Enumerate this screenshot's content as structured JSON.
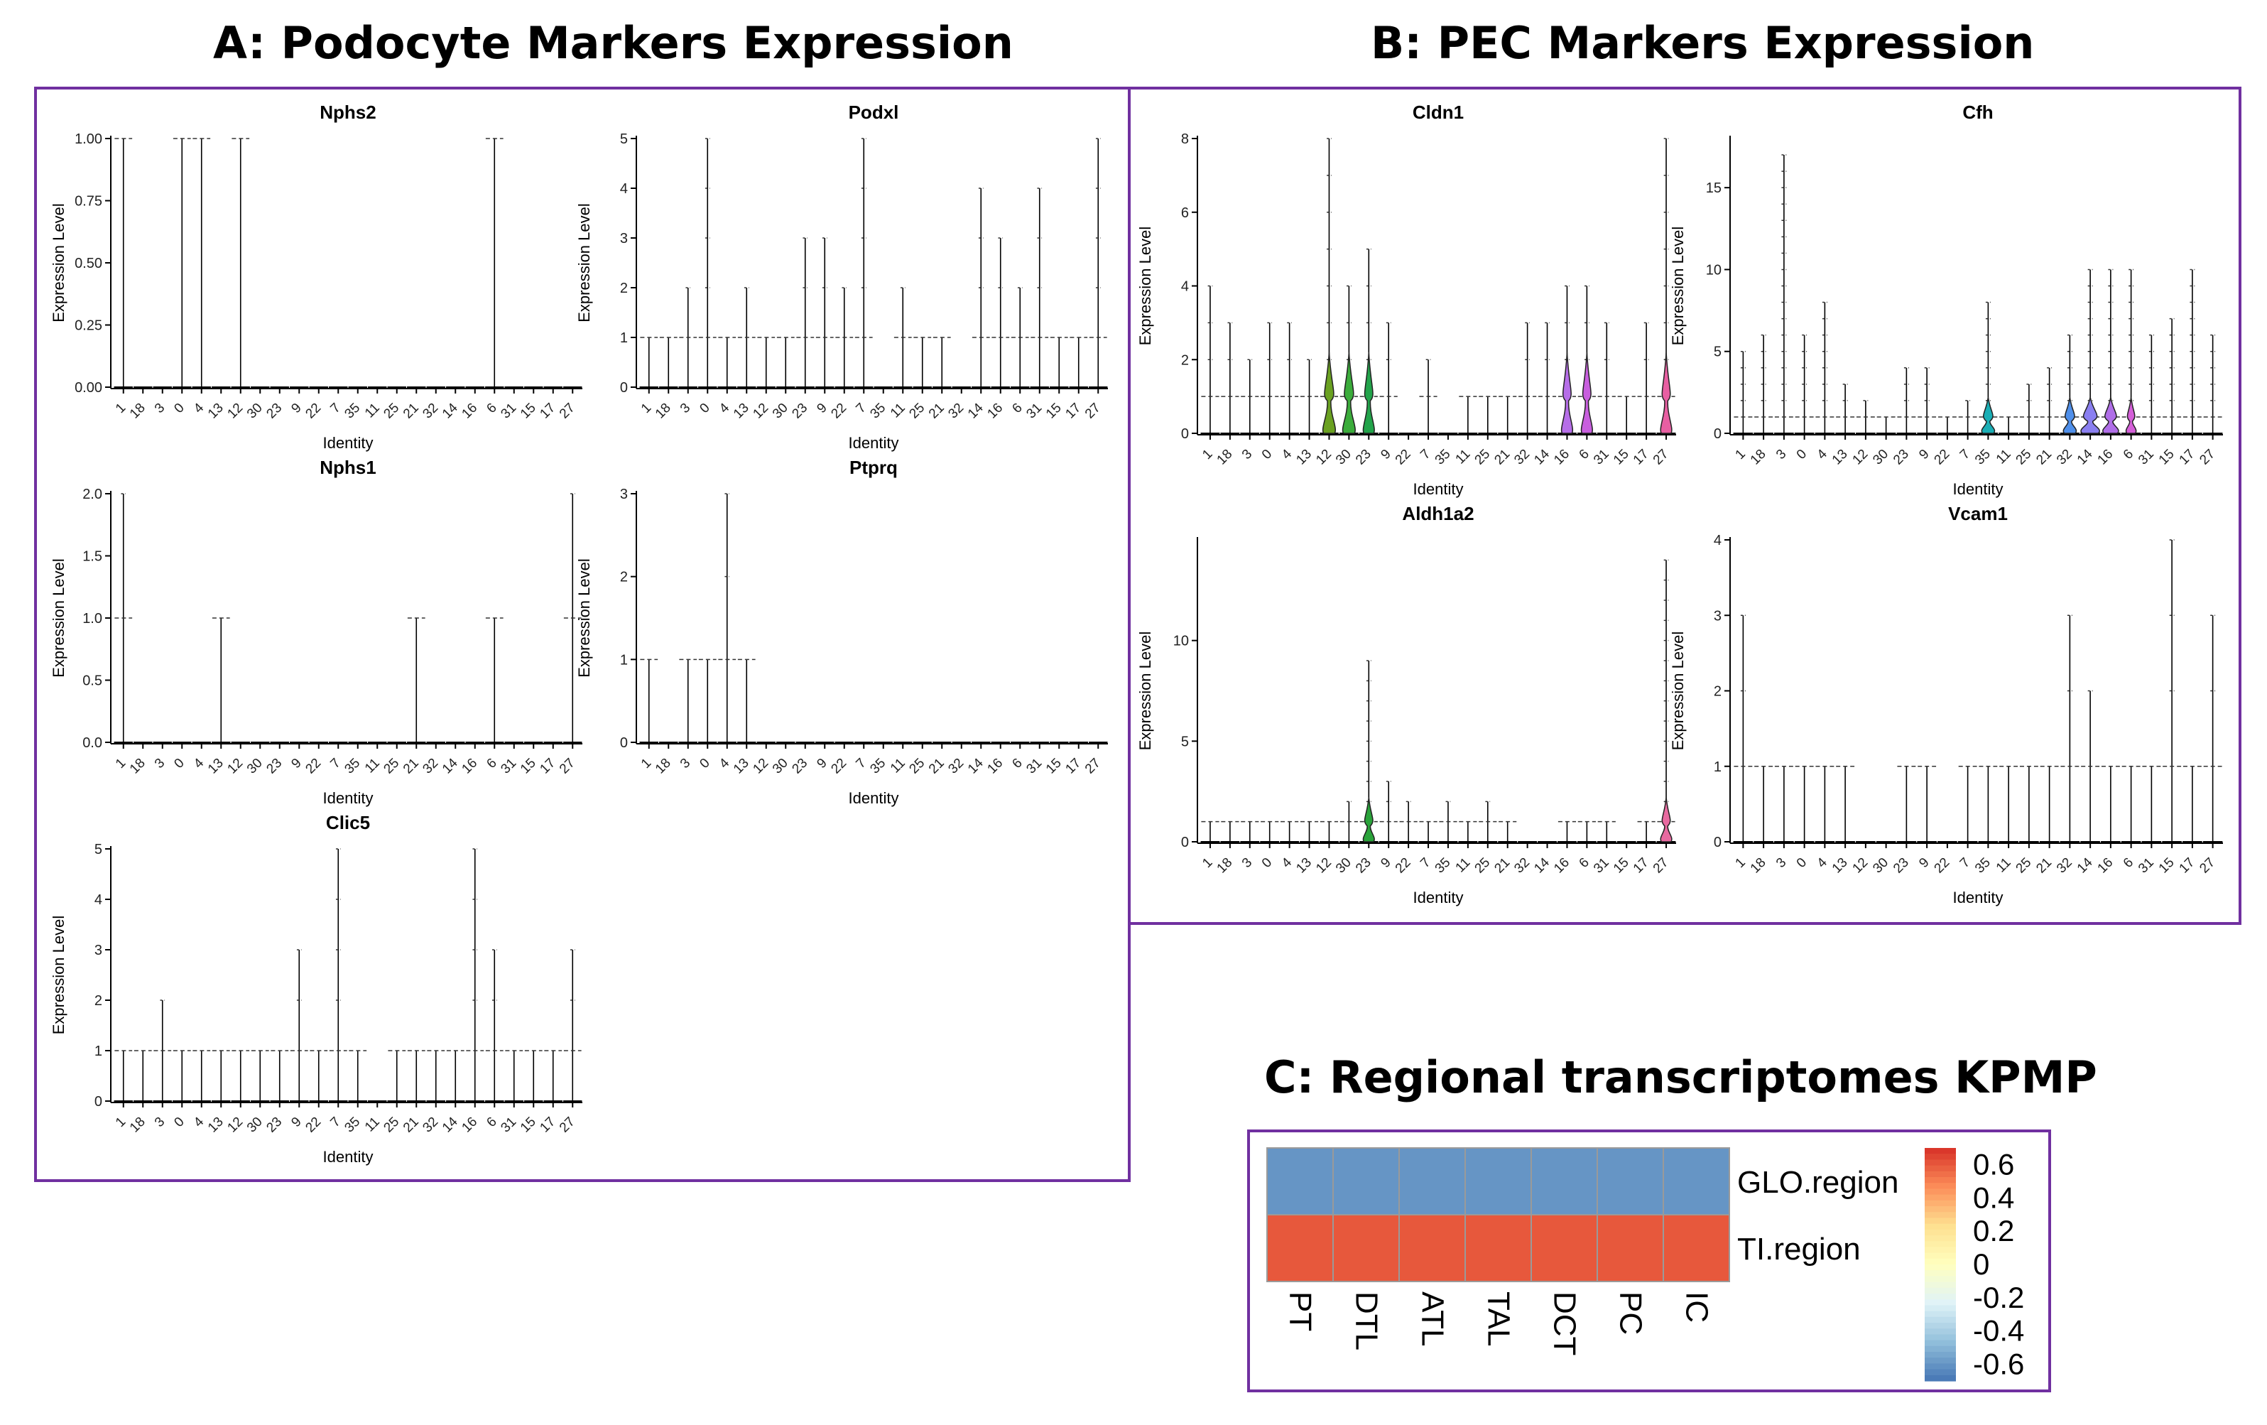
{
  "figure": {
    "panel_a_title": "A: Podocyte Markers Expression",
    "panel_b_title": "B: PEC Markers Expression",
    "panel_c_title": "C: Regional transcriptomes KPMP",
    "frame_color": "#7030a0"
  },
  "chart_data": [
    {
      "type": "violin",
      "panel": "A",
      "title": "Nphs2",
      "xlabel": "Identity",
      "ylabel": "Expression Level",
      "ylim": [
        0,
        1
      ],
      "yticks": [
        0,
        0.25,
        0.5,
        0.75,
        1
      ],
      "yticklabels": [
        "0.00",
        "0.25",
        "0.50",
        "0.75",
        "1.00"
      ],
      "categories": [
        "1",
        "18",
        "3",
        "0",
        "4",
        "13",
        "12",
        "30",
        "23",
        "9",
        "22",
        "7",
        "35",
        "11",
        "25",
        "21",
        "32",
        "14",
        "16",
        "6",
        "31",
        "15",
        "17",
        "27"
      ],
      "max_values": [
        1,
        0,
        0,
        1,
        1,
        0,
        1,
        0,
        0,
        0,
        0,
        0,
        0,
        0,
        0,
        0,
        0,
        0,
        0,
        1,
        0,
        0,
        0,
        0
      ],
      "filled_violins": []
    },
    {
      "type": "violin",
      "panel": "A",
      "title": "Podxl",
      "xlabel": "Identity",
      "ylabel": "Expression Level",
      "ylim": [
        0,
        5
      ],
      "yticks": [
        0,
        1,
        2,
        3,
        4,
        5
      ],
      "yticklabels": [
        "0",
        "1",
        "2",
        "3",
        "4",
        "5"
      ],
      "categories": [
        "1",
        "18",
        "3",
        "0",
        "4",
        "13",
        "12",
        "30",
        "23",
        "9",
        "22",
        "7",
        "35",
        "11",
        "25",
        "21",
        "32",
        "14",
        "16",
        "6",
        "31",
        "15",
        "17",
        "27"
      ],
      "max_values": [
        1,
        1,
        2,
        5,
        1,
        2,
        1,
        1,
        3,
        3,
        2,
        5,
        0,
        2,
        1,
        1,
        0,
        4,
        3,
        2,
        4,
        1,
        1,
        5
      ],
      "filled_violins": []
    },
    {
      "type": "violin",
      "panel": "A",
      "title": "Nphs1",
      "xlabel": "Identity",
      "ylabel": "Expression Level",
      "ylim": [
        0,
        2
      ],
      "yticks": [
        0,
        0.5,
        1,
        1.5,
        2
      ],
      "yticklabels": [
        "0.0",
        "0.5",
        "1.0",
        "1.5",
        "2.0"
      ],
      "categories": [
        "1",
        "18",
        "3",
        "0",
        "4",
        "13",
        "12",
        "30",
        "23",
        "9",
        "22",
        "7",
        "35",
        "11",
        "25",
        "21",
        "32",
        "14",
        "16",
        "6",
        "31",
        "15",
        "17",
        "27"
      ],
      "max_values": [
        2,
        0,
        0,
        0,
        0,
        1,
        0,
        0,
        0,
        0,
        0,
        0,
        0,
        0,
        0,
        1,
        0,
        0,
        0,
        1,
        0,
        0,
        0,
        2
      ],
      "filled_violins": []
    },
    {
      "type": "violin",
      "panel": "A",
      "title": "Ptprq",
      "xlabel": "Identity",
      "ylabel": "Expression Level",
      "ylim": [
        0,
        3
      ],
      "yticks": [
        0,
        1,
        2,
        3
      ],
      "yticklabels": [
        "0",
        "1",
        "2",
        "3"
      ],
      "categories": [
        "1",
        "18",
        "3",
        "0",
        "4",
        "13",
        "12",
        "30",
        "23",
        "9",
        "22",
        "7",
        "35",
        "11",
        "25",
        "21",
        "32",
        "14",
        "16",
        "6",
        "31",
        "15",
        "17",
        "27"
      ],
      "max_values": [
        1,
        0,
        1,
        1,
        3,
        1,
        0,
        0,
        0,
        0,
        0,
        0,
        0,
        0,
        0,
        0,
        0,
        0,
        0,
        0,
        0,
        0,
        0,
        0
      ],
      "filled_violins": []
    },
    {
      "type": "violin",
      "panel": "A",
      "title": "Clic5",
      "xlabel": "Identity",
      "ylabel": "Expression Level",
      "ylim": [
        0,
        5
      ],
      "yticks": [
        0,
        1,
        2,
        3,
        4,
        5
      ],
      "yticklabels": [
        "0",
        "1",
        "2",
        "3",
        "4",
        "5"
      ],
      "categories": [
        "1",
        "18",
        "3",
        "0",
        "4",
        "13",
        "12",
        "30",
        "23",
        "9",
        "22",
        "7",
        "35",
        "11",
        "25",
        "21",
        "32",
        "14",
        "16",
        "6",
        "31",
        "15",
        "17",
        "27"
      ],
      "max_values": [
        1,
        1,
        2,
        1,
        1,
        1,
        1,
        1,
        1,
        3,
        1,
        5,
        1,
        0,
        1,
        1,
        1,
        1,
        5,
        3,
        1,
        1,
        1,
        3
      ],
      "filled_violins": []
    },
    {
      "type": "violin",
      "panel": "B",
      "title": "Cldn1",
      "xlabel": "Identity",
      "ylabel": "Expression Level",
      "ylim": [
        0,
        8
      ],
      "yticks": [
        0,
        2,
        4,
        6,
        8
      ],
      "yticklabels": [
        "0",
        "2",
        "4",
        "6",
        "8"
      ],
      "categories": [
        "1",
        "18",
        "3",
        "0",
        "4",
        "13",
        "12",
        "30",
        "23",
        "9",
        "22",
        "7",
        "35",
        "11",
        "25",
        "21",
        "32",
        "14",
        "16",
        "6",
        "31",
        "15",
        "17",
        "27"
      ],
      "max_values": [
        4,
        3,
        2,
        3,
        3,
        2,
        8,
        4,
        5,
        3,
        0,
        2,
        0,
        1,
        1,
        1,
        3,
        3,
        4,
        4,
        3,
        1,
        3,
        8
      ],
      "filled_violins": [
        {
          "cluster": "12",
          "color": "#6aa121",
          "width": 0.9
        },
        {
          "cluster": "30",
          "color": "#3bac3b",
          "width": 0.9
        },
        {
          "cluster": "23",
          "color": "#22a34a",
          "width": 0.8
        },
        {
          "cluster": "16",
          "color": "#b66ee8",
          "width": 0.8
        },
        {
          "cluster": "6",
          "color": "#c85fde",
          "width": 0.8
        },
        {
          "cluster": "27",
          "color": "#e85fa2",
          "width": 0.8
        }
      ]
    },
    {
      "type": "violin",
      "panel": "B",
      "title": "Cfh",
      "xlabel": "Identity",
      "ylabel": "Expression Level",
      "ylim": [
        0,
        18
      ],
      "yticks": [
        0,
        5,
        10,
        15
      ],
      "yticklabels": [
        "0",
        "5",
        "10",
        "15"
      ],
      "categories": [
        "1",
        "18",
        "3",
        "0",
        "4",
        "13",
        "12",
        "30",
        "23",
        "9",
        "22",
        "7",
        "35",
        "11",
        "25",
        "21",
        "32",
        "14",
        "16",
        "6",
        "31",
        "15",
        "17",
        "27"
      ],
      "max_values": [
        5,
        6,
        17,
        6,
        8,
        3,
        2,
        1,
        4,
        4,
        1,
        2,
        8,
        1,
        3,
        4,
        6,
        10,
        10,
        10,
        6,
        7,
        10,
        6
      ],
      "filled_violins": [
        {
          "cluster": "35",
          "color": "#1aaeb5",
          "width": 0.9
        },
        {
          "cluster": "32",
          "color": "#4f8fea",
          "width": 0.9
        },
        {
          "cluster": "14",
          "color": "#8a7ff0",
          "width": 1.3
        },
        {
          "cluster": "16",
          "color": "#b06ee8",
          "width": 1.1
        },
        {
          "cluster": "6",
          "color": "#d45fd8",
          "width": 0.7
        }
      ]
    },
    {
      "type": "violin",
      "panel": "B",
      "title": "Aldh1a2",
      "xlabel": "Identity",
      "ylabel": "Expression Level",
      "ylim": [
        0,
        15
      ],
      "yticks": [
        0,
        5,
        10
      ],
      "yticklabels": [
        "0",
        "5",
        "10"
      ],
      "categories": [
        "1",
        "18",
        "3",
        "0",
        "4",
        "13",
        "12",
        "30",
        "23",
        "9",
        "22",
        "7",
        "35",
        "11",
        "25",
        "21",
        "32",
        "14",
        "16",
        "6",
        "31",
        "15",
        "17",
        "27"
      ],
      "max_values": [
        1,
        1,
        1,
        1,
        1,
        1,
        1,
        2,
        9,
        3,
        2,
        1,
        2,
        1,
        2,
        1,
        0,
        0,
        1,
        1,
        1,
        0,
        1,
        14
      ],
      "filled_violins": [
        {
          "cluster": "23",
          "color": "#2aa33a",
          "width": 0.8
        },
        {
          "cluster": "27",
          "color": "#e86aa0",
          "width": 0.8
        }
      ]
    },
    {
      "type": "violin",
      "panel": "B",
      "title": "Vcam1",
      "xlabel": "Identity",
      "ylabel": "Expression Level",
      "ylim": [
        0,
        4
      ],
      "yticks": [
        0,
        1,
        2,
        3,
        4
      ],
      "yticklabels": [
        "0",
        "1",
        "2",
        "3",
        "4"
      ],
      "categories": [
        "1",
        "18",
        "3",
        "0",
        "4",
        "13",
        "12",
        "30",
        "23",
        "9",
        "22",
        "7",
        "35",
        "11",
        "25",
        "21",
        "32",
        "14",
        "16",
        "6",
        "31",
        "15",
        "17",
        "27"
      ],
      "max_values": [
        3,
        1,
        1,
        1,
        1,
        1,
        0,
        0,
        1,
        1,
        0,
        1,
        1,
        1,
        1,
        1,
        3,
        2,
        1,
        1,
        1,
        4,
        1,
        3
      ],
      "filled_violins": []
    },
    {
      "type": "heatmap",
      "panel": "C",
      "columns": [
        "PT",
        "DTL",
        "ATL",
        "TAL",
        "DCT",
        "PC",
        "IC"
      ],
      "rows": [
        "GLO.region",
        "TI.region"
      ],
      "values": [
        [
          -0.6,
          -0.6,
          -0.6,
          -0.6,
          -0.6,
          -0.6,
          -0.6
        ],
        [
          0.6,
          0.6,
          0.6,
          0.6,
          0.6,
          0.6,
          0.6
        ]
      ],
      "colorbar_ticks": [
        0.6,
        0.4,
        0.2,
        0,
        -0.2,
        -0.4,
        -0.6
      ],
      "colorbar_labels": [
        "0.6",
        "0.4",
        "0.2",
        "0",
        "-0.2",
        "-0.4",
        "-0.6"
      ],
      "colorscale": [
        "#4575b4",
        "#91bfdb",
        "#e0f3f8",
        "#ffffbf",
        "#fee090",
        "#fc8d59",
        "#d73027"
      ]
    }
  ]
}
